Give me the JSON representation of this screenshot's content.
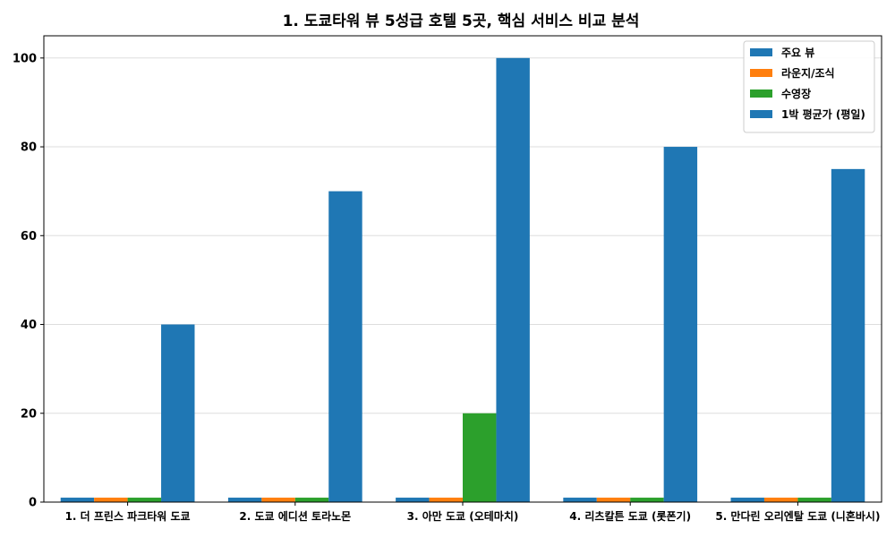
{
  "chart_data": {
    "type": "bar",
    "title": "1. 도쿄타워 뷰 5성급 호텔 5곳, 핵심 서비스 비교 분석",
    "xlabel": "",
    "ylabel": "",
    "ylim": [
      0,
      105
    ],
    "yticks": [
      0,
      20,
      40,
      60,
      80,
      100
    ],
    "grid": "y",
    "legend_position": "top-right",
    "categories": [
      "1. 더 프린스 파크타워 도쿄",
      "2. 도쿄 에디션 토라노몬",
      "3. 아만 도쿄 (오테마치)",
      "4. 리츠칼튼 도쿄 (롯폰기)",
      "5. 만다린 오리엔탈 도쿄 (니혼바시)"
    ],
    "series": [
      {
        "name": "주요 뷰",
        "color": "#1f77b4",
        "values": [
          1,
          1,
          1,
          1,
          1
        ]
      },
      {
        "name": "라운지/조식",
        "color": "#ff7f0e",
        "values": [
          1,
          1,
          1,
          1,
          1
        ]
      },
      {
        "name": "수영장",
        "color": "#2ca02c",
        "values": [
          1,
          1,
          20,
          1,
          1
        ]
      },
      {
        "name": "1박 평균가 (평일)",
        "color": "#1f77b4",
        "values": [
          40,
          70,
          100,
          80,
          75
        ]
      }
    ]
  }
}
